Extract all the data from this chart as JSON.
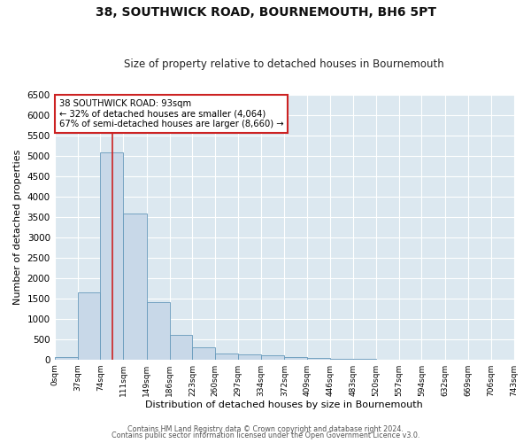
{
  "title": "38, SOUTHWICK ROAD, BOURNEMOUTH, BH6 5PT",
  "subtitle": "Size of property relative to detached houses in Bournemouth",
  "xlabel": "Distribution of detached houses by size in Bournemouth",
  "ylabel": "Number of detached properties",
  "bar_color": "#c8d8e8",
  "bar_edge_color": "#6699bb",
  "figure_bg": "#ffffff",
  "axes_bg": "#dce8f0",
  "grid_color": "#ffffff",
  "annotation_box_color": "#ffffff",
  "annotation_box_edge_color": "#cc2222",
  "vline_color": "#cc2222",
  "vline_x": 93,
  "bin_edges": [
    0,
    37,
    74,
    111,
    149,
    186,
    223,
    260,
    297,
    334,
    372,
    409,
    446,
    483,
    520,
    557,
    594,
    632,
    669,
    706,
    743
  ],
  "bin_heights": [
    65,
    1650,
    5080,
    3580,
    1400,
    610,
    300,
    155,
    120,
    95,
    50,
    40,
    10,
    5,
    2,
    1,
    0,
    0,
    0,
    0
  ],
  "xlim": [
    0,
    743
  ],
  "ylim": [
    0,
    6500
  ],
  "yticks": [
    0,
    500,
    1000,
    1500,
    2000,
    2500,
    3000,
    3500,
    4000,
    4500,
    5000,
    5500,
    6000,
    6500
  ],
  "xtick_labels": [
    "0sqm",
    "37sqm",
    "74sqm",
    "111sqm",
    "149sqm",
    "186sqm",
    "223sqm",
    "260sqm",
    "297sqm",
    "334sqm",
    "372sqm",
    "409sqm",
    "446sqm",
    "483sqm",
    "520sqm",
    "557sqm",
    "594sqm",
    "632sqm",
    "669sqm",
    "706sqm",
    "743sqm"
  ],
  "annotation_title": "38 SOUTHWICK ROAD: 93sqm",
  "annotation_line1": "← 32% of detached houses are smaller (4,064)",
  "annotation_line2": "67% of semi-detached houses are larger (8,660) →",
  "footer1": "Contains HM Land Registry data © Crown copyright and database right 2024.",
  "footer2": "Contains public sector information licensed under the Open Government Licence v3.0."
}
